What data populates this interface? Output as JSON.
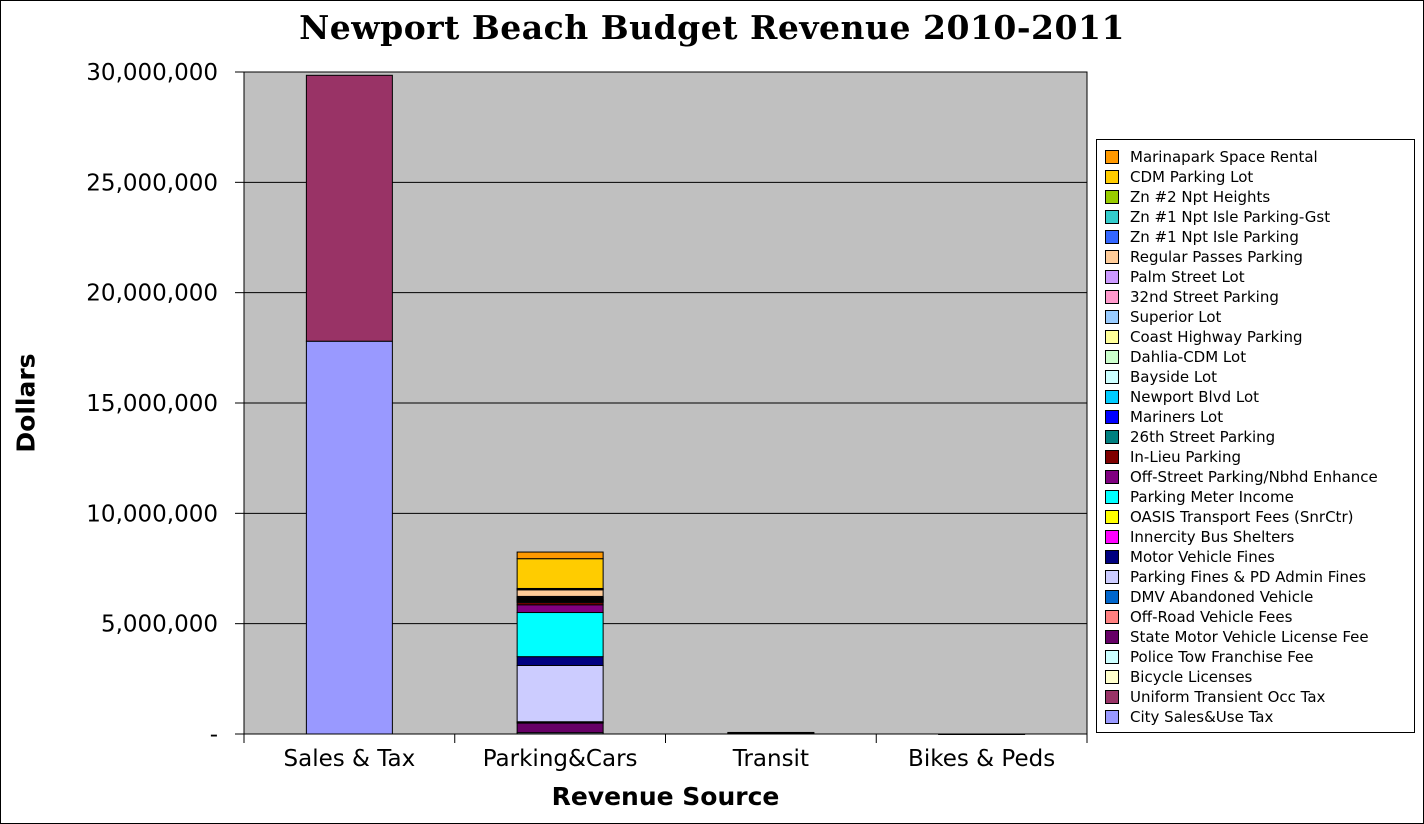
{
  "chart_data": {
    "type": "bar",
    "stacked": true,
    "title": "Newport Beach Budget Revenue 2010-2011",
    "xlabel": "Revenue Source",
    "ylabel": "Dollars",
    "ylim": [
      0,
      30000000
    ],
    "y_ticks": [
      {
        "value": 0,
        "label": "-"
      },
      {
        "value": 5000000,
        "label": "5,000,000"
      },
      {
        "value": 10000000,
        "label": "10,000,000"
      },
      {
        "value": 15000000,
        "label": "15,000,000"
      },
      {
        "value": 20000000,
        "label": "20,000,000"
      },
      {
        "value": 25000000,
        "label": "25,000,000"
      },
      {
        "value": 30000000,
        "label": "30,000,000"
      }
    ],
    "grid": true,
    "plot_background": "#C0C0C0",
    "legend_position": "right",
    "categories": [
      "Sales & Tax",
      "Parking&Cars",
      "Transit",
      "Bikes & Peds"
    ],
    "series": [
      {
        "name": "City Sales&Use Tax",
        "color": "#9999FF",
        "values": [
          17800000,
          0,
          0,
          0
        ]
      },
      {
        "name": "Uniform Transient Occ Tax",
        "color": "#993366",
        "values": [
          12050000,
          0,
          0,
          0
        ]
      },
      {
        "name": "Bicycle Licenses",
        "color": "#FFFFCC",
        "values": [
          0,
          0,
          0,
          500
        ]
      },
      {
        "name": "Police Tow Franchise Fee",
        "color": "#CCFFFF",
        "values": [
          0,
          60000,
          0,
          0
        ]
      },
      {
        "name": "State Motor Vehicle License Fee",
        "color": "#660066",
        "values": [
          0,
          450000,
          0,
          0
        ]
      },
      {
        "name": "Off-Road Vehicle Fees",
        "color": "#FF8080",
        "values": [
          0,
          5000,
          0,
          0
        ]
      },
      {
        "name": "DMV Abandoned Vehicle",
        "color": "#0066CC",
        "values": [
          0,
          40000,
          0,
          0
        ]
      },
      {
        "name": "Parking Fines & PD Admin Fines",
        "color": "#CCCCFF",
        "values": [
          0,
          2550000,
          0,
          0
        ]
      },
      {
        "name": "Motor Vehicle Fines",
        "color": "#000080",
        "values": [
          0,
          400000,
          0,
          0
        ]
      },
      {
        "name": "Innercity Bus Shelters",
        "color": "#FF00FF",
        "values": [
          0,
          0,
          40000,
          0
        ]
      },
      {
        "name": "OASIS Transport Fees (SnrCtr)",
        "color": "#FFFF00",
        "values": [
          0,
          0,
          30000,
          0
        ]
      },
      {
        "name": "Parking Meter Income",
        "color": "#00FFFF",
        "values": [
          0,
          2000000,
          0,
          0
        ]
      },
      {
        "name": "Off-Street Parking/Nbhd Enhance",
        "color": "#800080",
        "values": [
          0,
          350000,
          0,
          0
        ]
      },
      {
        "name": "In-Lieu Parking",
        "color": "#800000",
        "values": [
          0,
          100000,
          0,
          0
        ]
      },
      {
        "name": "26th Street Parking",
        "color": "#008080",
        "values": [
          0,
          50000,
          0,
          0
        ]
      },
      {
        "name": "Mariners Lot",
        "color": "#0000FF",
        "values": [
          0,
          15000,
          0,
          0
        ]
      },
      {
        "name": "Newport Blvd Lot",
        "color": "#00CCFF",
        "values": [
          0,
          20000,
          0,
          0
        ]
      },
      {
        "name": "Bayside Lot",
        "color": "#CCFFFF",
        "values": [
          0,
          25000,
          0,
          0
        ]
      },
      {
        "name": "Dahlia-CDM Lot",
        "color": "#CCFFCC",
        "values": [
          0,
          20000,
          0,
          0
        ]
      },
      {
        "name": "Coast Highway Parking",
        "color": "#FFFF99",
        "values": [
          0,
          30000,
          0,
          0
        ]
      },
      {
        "name": "Superior Lot",
        "color": "#99CCFF",
        "values": [
          0,
          40000,
          0,
          0
        ]
      },
      {
        "name": "32nd Street Parking",
        "color": "#FF99CC",
        "values": [
          0,
          30000,
          0,
          0
        ]
      },
      {
        "name": "Palm Street Lot",
        "color": "#CC99FF",
        "values": [
          0,
          50000,
          0,
          0
        ]
      },
      {
        "name": "Regular Passes Parking",
        "color": "#FFCC99",
        "values": [
          0,
          300000,
          0,
          0
        ]
      },
      {
        "name": "Zn #1 Npt Isle Parking",
        "color": "#3366FF",
        "values": [
          0,
          20000,
          0,
          0
        ]
      },
      {
        "name": "Zn #1 Npt Isle Parking-Gst",
        "color": "#33CCCC",
        "values": [
          0,
          20000,
          0,
          0
        ]
      },
      {
        "name": "Zn #2 Npt Heights",
        "color": "#99CC00",
        "values": [
          0,
          20000,
          0,
          0
        ]
      },
      {
        "name": "CDM Parking Lot",
        "color": "#FFCC00",
        "values": [
          0,
          1350000,
          0,
          0
        ]
      },
      {
        "name": "Marinapark Space Rental",
        "color": "#FF9900",
        "values": [
          0,
          300000,
          0,
          0
        ]
      }
    ]
  }
}
